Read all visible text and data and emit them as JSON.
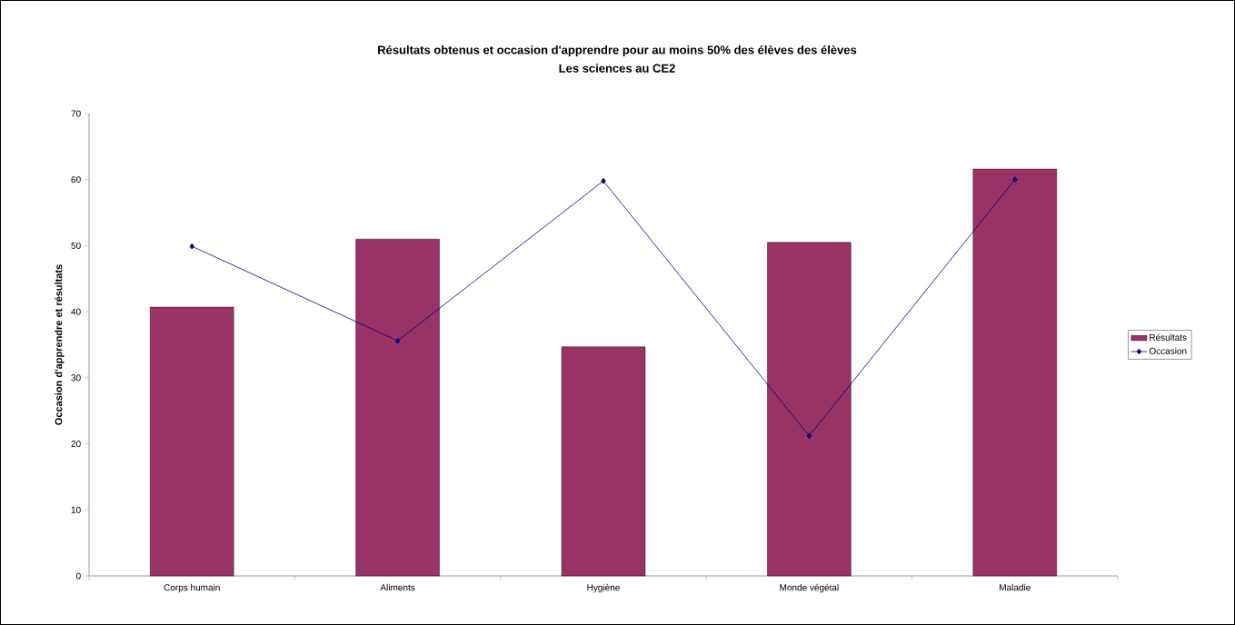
{
  "chart_data": {
    "type": "bar",
    "title": "Résultats obtenus et occasion d'apprendre pour au moins 50% des élèves des élèves",
    "subtitle": "Les sciences au CE2",
    "ylabel": "Occasion d'apprendre et résultats",
    "categories": [
      "Corps humain",
      "Aliments",
      "Hygiène",
      "Monde végétal",
      "Maladie"
    ],
    "series": [
      {
        "name": "Résultats",
        "color": "#993366",
        "values": [
          40.7,
          51.0,
          34.7,
          50.5,
          61.6
        ]
      },
      {
        "name": "Occasion",
        "type": "line",
        "color": "#000080",
        "marker": "diamond",
        "values": [
          49.9,
          35.6,
          59.8,
          21.2,
          60.0
        ]
      }
    ],
    "ylim": [
      0,
      70
    ],
    "yticks": [
      0,
      10,
      20,
      30,
      40,
      50,
      60,
      70
    ],
    "grid": false,
    "legend": "right"
  }
}
